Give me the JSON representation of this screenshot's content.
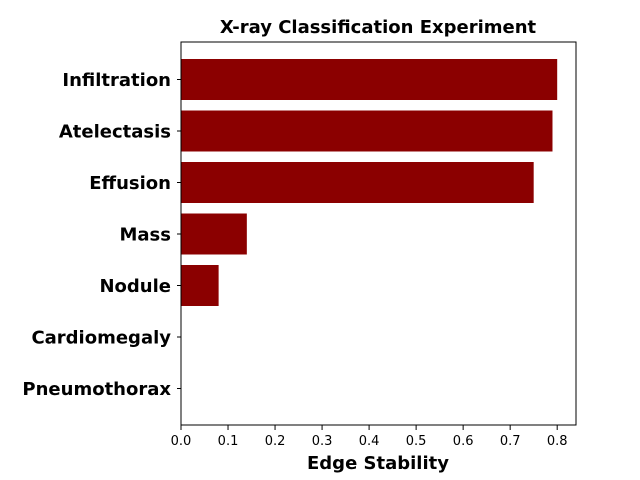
{
  "chart_data": {
    "type": "bar",
    "orientation": "horizontal",
    "title": "X-ray Classification Experiment",
    "xlabel": "Edge Stability",
    "ylabel": "",
    "categories": [
      "Infiltration",
      "Atelectasis",
      "Effusion",
      "Mass",
      "Nodule",
      "Cardiomegaly",
      "Pneumothorax"
    ],
    "values": [
      0.8,
      0.79,
      0.75,
      0.14,
      0.08,
      0.0,
      0.0
    ],
    "xlim": [
      0.0,
      0.84
    ],
    "xticks": [
      "0.0",
      "0.1",
      "0.2",
      "0.3",
      "0.4",
      "0.5",
      "0.6",
      "0.7",
      "0.8"
    ],
    "bar_color": "#8b0000",
    "grid": false,
    "legend": "none"
  }
}
